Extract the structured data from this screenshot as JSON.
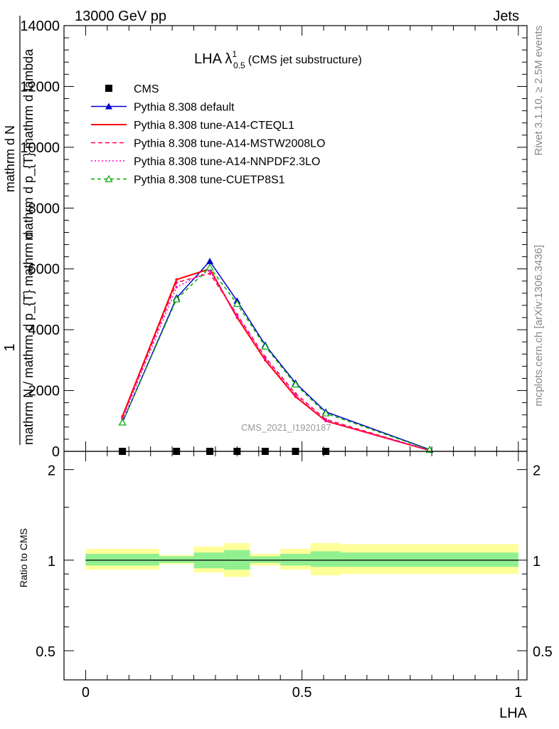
{
  "header": {
    "left": "13000 GeV pp",
    "right": "Jets"
  },
  "side_labels": {
    "rivet": "Rivet 3.1.10, ≥ 2.5M events",
    "mcplots": "mcplots.cern.ch [arXiv:1306.3436]"
  },
  "ylabel": {
    "numerator": "1",
    "denominator_top": "mathrm dN",
    "line1": "mathrm d p_{T} mathrm d lambda",
    "line2": "mathrm N / mathrm d p_{T} mathrm d",
    "line3": "mathrm d N"
  },
  "chart_data": {
    "type": "line",
    "title": "LHA λ",
    "title_sup": "1",
    "title_sub": "0.5",
    "title_note": "(CMS jet substructure)",
    "watermark": "CMS_2021_I1920187",
    "xlabel": "LHA",
    "ratio_ylabel": "Ratio to CMS",
    "xlim": [
      -0.05,
      1.02
    ],
    "ylim": [
      0,
      14000
    ],
    "ratio_ylim": [
      0.4,
      2.3
    ],
    "x_ticks": [
      0,
      0.5,
      1
    ],
    "y_ticks": [
      0,
      2000,
      4000,
      6000,
      8000,
      10000,
      12000,
      14000
    ],
    "ratio_ticks": [
      0.5,
      1,
      2
    ],
    "x_tick_labels": [
      "0",
      "0.5",
      "1"
    ],
    "y_tick_labels": [
      "0",
      "2000",
      "4000",
      "6000",
      "8000",
      "10000",
      "12000",
      "14000"
    ],
    "ratio_tick_labels": [
      "0.5",
      "1",
      "2"
    ],
    "legend_position": "top-left",
    "x": [
      0.085,
      0.21,
      0.287,
      0.35,
      0.415,
      0.485,
      0.555,
      0.795
    ],
    "cms": {
      "name": "CMS",
      "x": [
        0.085,
        0.21,
        0.287,
        0.35,
        0.415,
        0.485,
        0.555
      ],
      "values": [
        0,
        0,
        0,
        0,
        0,
        0,
        0
      ]
    },
    "series": [
      {
        "name": "Pythia 8.308 default",
        "color": "#0000cc",
        "dash": "",
        "marker": "triangle-filled",
        "values": [
          950,
          5050,
          6250,
          4950,
          3500,
          2250,
          1300,
          60
        ]
      },
      {
        "name": "Pythia 8.308 tune-A14-CTEQL1",
        "color": "#ff0000",
        "dash": "",
        "marker": "none",
        "values": [
          1150,
          5650,
          6000,
          4400,
          3000,
          1800,
          1000,
          30
        ]
      },
      {
        "name": "Pythia 8.308 tune-A14-MSTW2008LO",
        "color": "#ff0055",
        "dash": "6,4",
        "marker": "none",
        "values": [
          1100,
          5550,
          5850,
          4500,
          3100,
          1900,
          1050,
          30
        ]
      },
      {
        "name": "Pythia 8.308 tune-A14-NNPDF2.3LO",
        "color": "#ff00cc",
        "dash": "2,3",
        "marker": "none",
        "values": [
          1050,
          5400,
          5950,
          4450,
          3050,
          1850,
          1000,
          30
        ]
      },
      {
        "name": "Pythia 8.308 tune-CUETP8S1",
        "color": "#00aa00",
        "dash": "5,4",
        "marker": "triangle-open",
        "values": [
          950,
          5000,
          6050,
          4850,
          3450,
          2200,
          1250,
          50
        ]
      }
    ],
    "ratio_bands": [
      {
        "x0": 0.0,
        "x1": 0.17,
        "inner": [
          0.96,
          1.05
        ],
        "outer": [
          0.93,
          1.09
        ]
      },
      {
        "x0": 0.17,
        "x1": 0.25,
        "inner": [
          0.98,
          1.03
        ],
        "outer": [
          0.97,
          1.04
        ]
      },
      {
        "x0": 0.25,
        "x1": 0.32,
        "inner": [
          0.94,
          1.06
        ],
        "outer": [
          0.91,
          1.11
        ]
      },
      {
        "x0": 0.32,
        "x1": 0.38,
        "inner": [
          0.93,
          1.08
        ],
        "outer": [
          0.88,
          1.14
        ]
      },
      {
        "x0": 0.38,
        "x1": 0.45,
        "inner": [
          0.98,
          1.03
        ],
        "outer": [
          0.96,
          1.05
        ]
      },
      {
        "x0": 0.45,
        "x1": 0.52,
        "inner": [
          0.96,
          1.05
        ],
        "outer": [
          0.93,
          1.09
        ]
      },
      {
        "x0": 0.52,
        "x1": 0.59,
        "inner": [
          0.95,
          1.07
        ],
        "outer": [
          0.89,
          1.14
        ]
      },
      {
        "x0": 0.59,
        "x1": 1.0,
        "inner": [
          0.95,
          1.06
        ],
        "outer": [
          0.9,
          1.13
        ]
      }
    ],
    "colors": {
      "inner_band": "#90f090",
      "outer_band": "#ffff99",
      "frame": "#000000",
      "side_text": "#888888",
      "watermark": "#999999"
    }
  }
}
